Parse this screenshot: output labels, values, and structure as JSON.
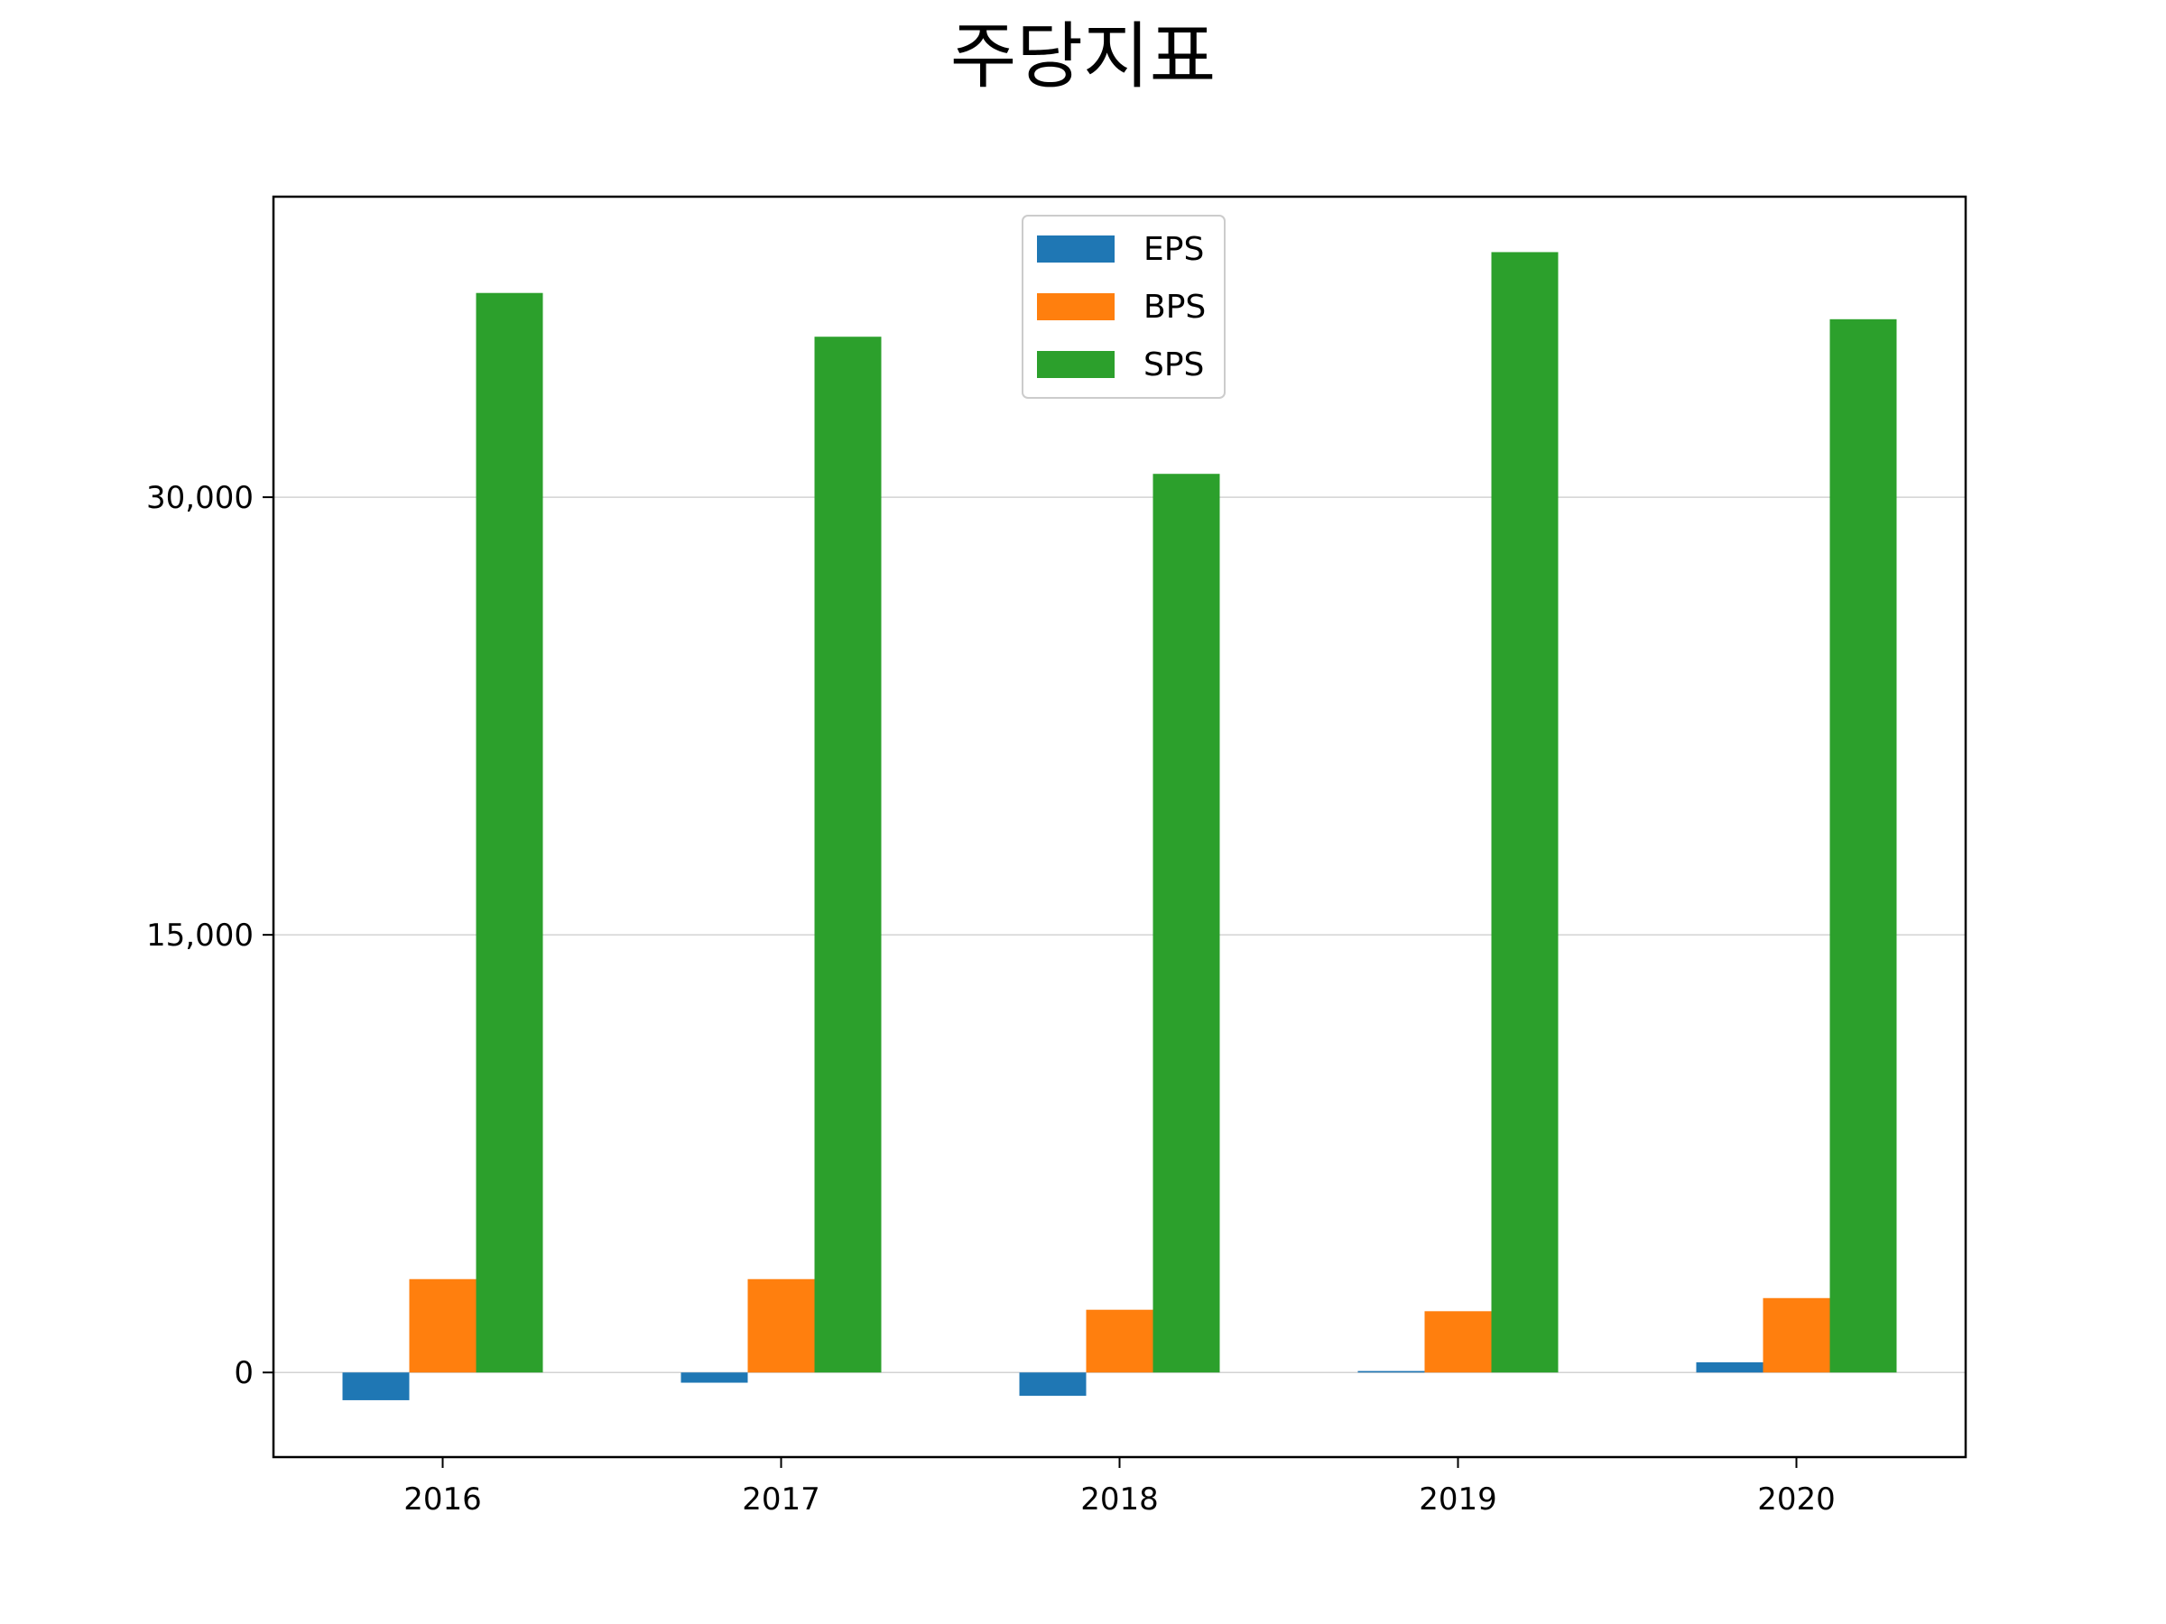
{
  "chart_data": {
    "type": "bar",
    "title": "주당지표",
    "xlabel": "",
    "ylabel": "",
    "categories": [
      "2016",
      "2017",
      "2018",
      "2019",
      "2020"
    ],
    "series": [
      {
        "name": "EPS",
        "color": "#1f77b4",
        "values": [
          -950,
          -350,
          -800,
          50,
          350
        ]
      },
      {
        "name": "BPS",
        "color": "#ff7f0e",
        "values": [
          3200,
          3200,
          2150,
          2100,
          2550
        ]
      },
      {
        "name": "SPS",
        "color": "#2ca02c",
        "values": [
          37000,
          35500,
          30800,
          38400,
          36100
        ]
      }
    ],
    "yticks": [
      0,
      15000,
      30000
    ],
    "ytick_labels": [
      "0",
      "15,000",
      "30,000"
    ],
    "ylim": [
      -2900,
      40300
    ],
    "grid": "horizontal",
    "legend_position": "top-center"
  }
}
